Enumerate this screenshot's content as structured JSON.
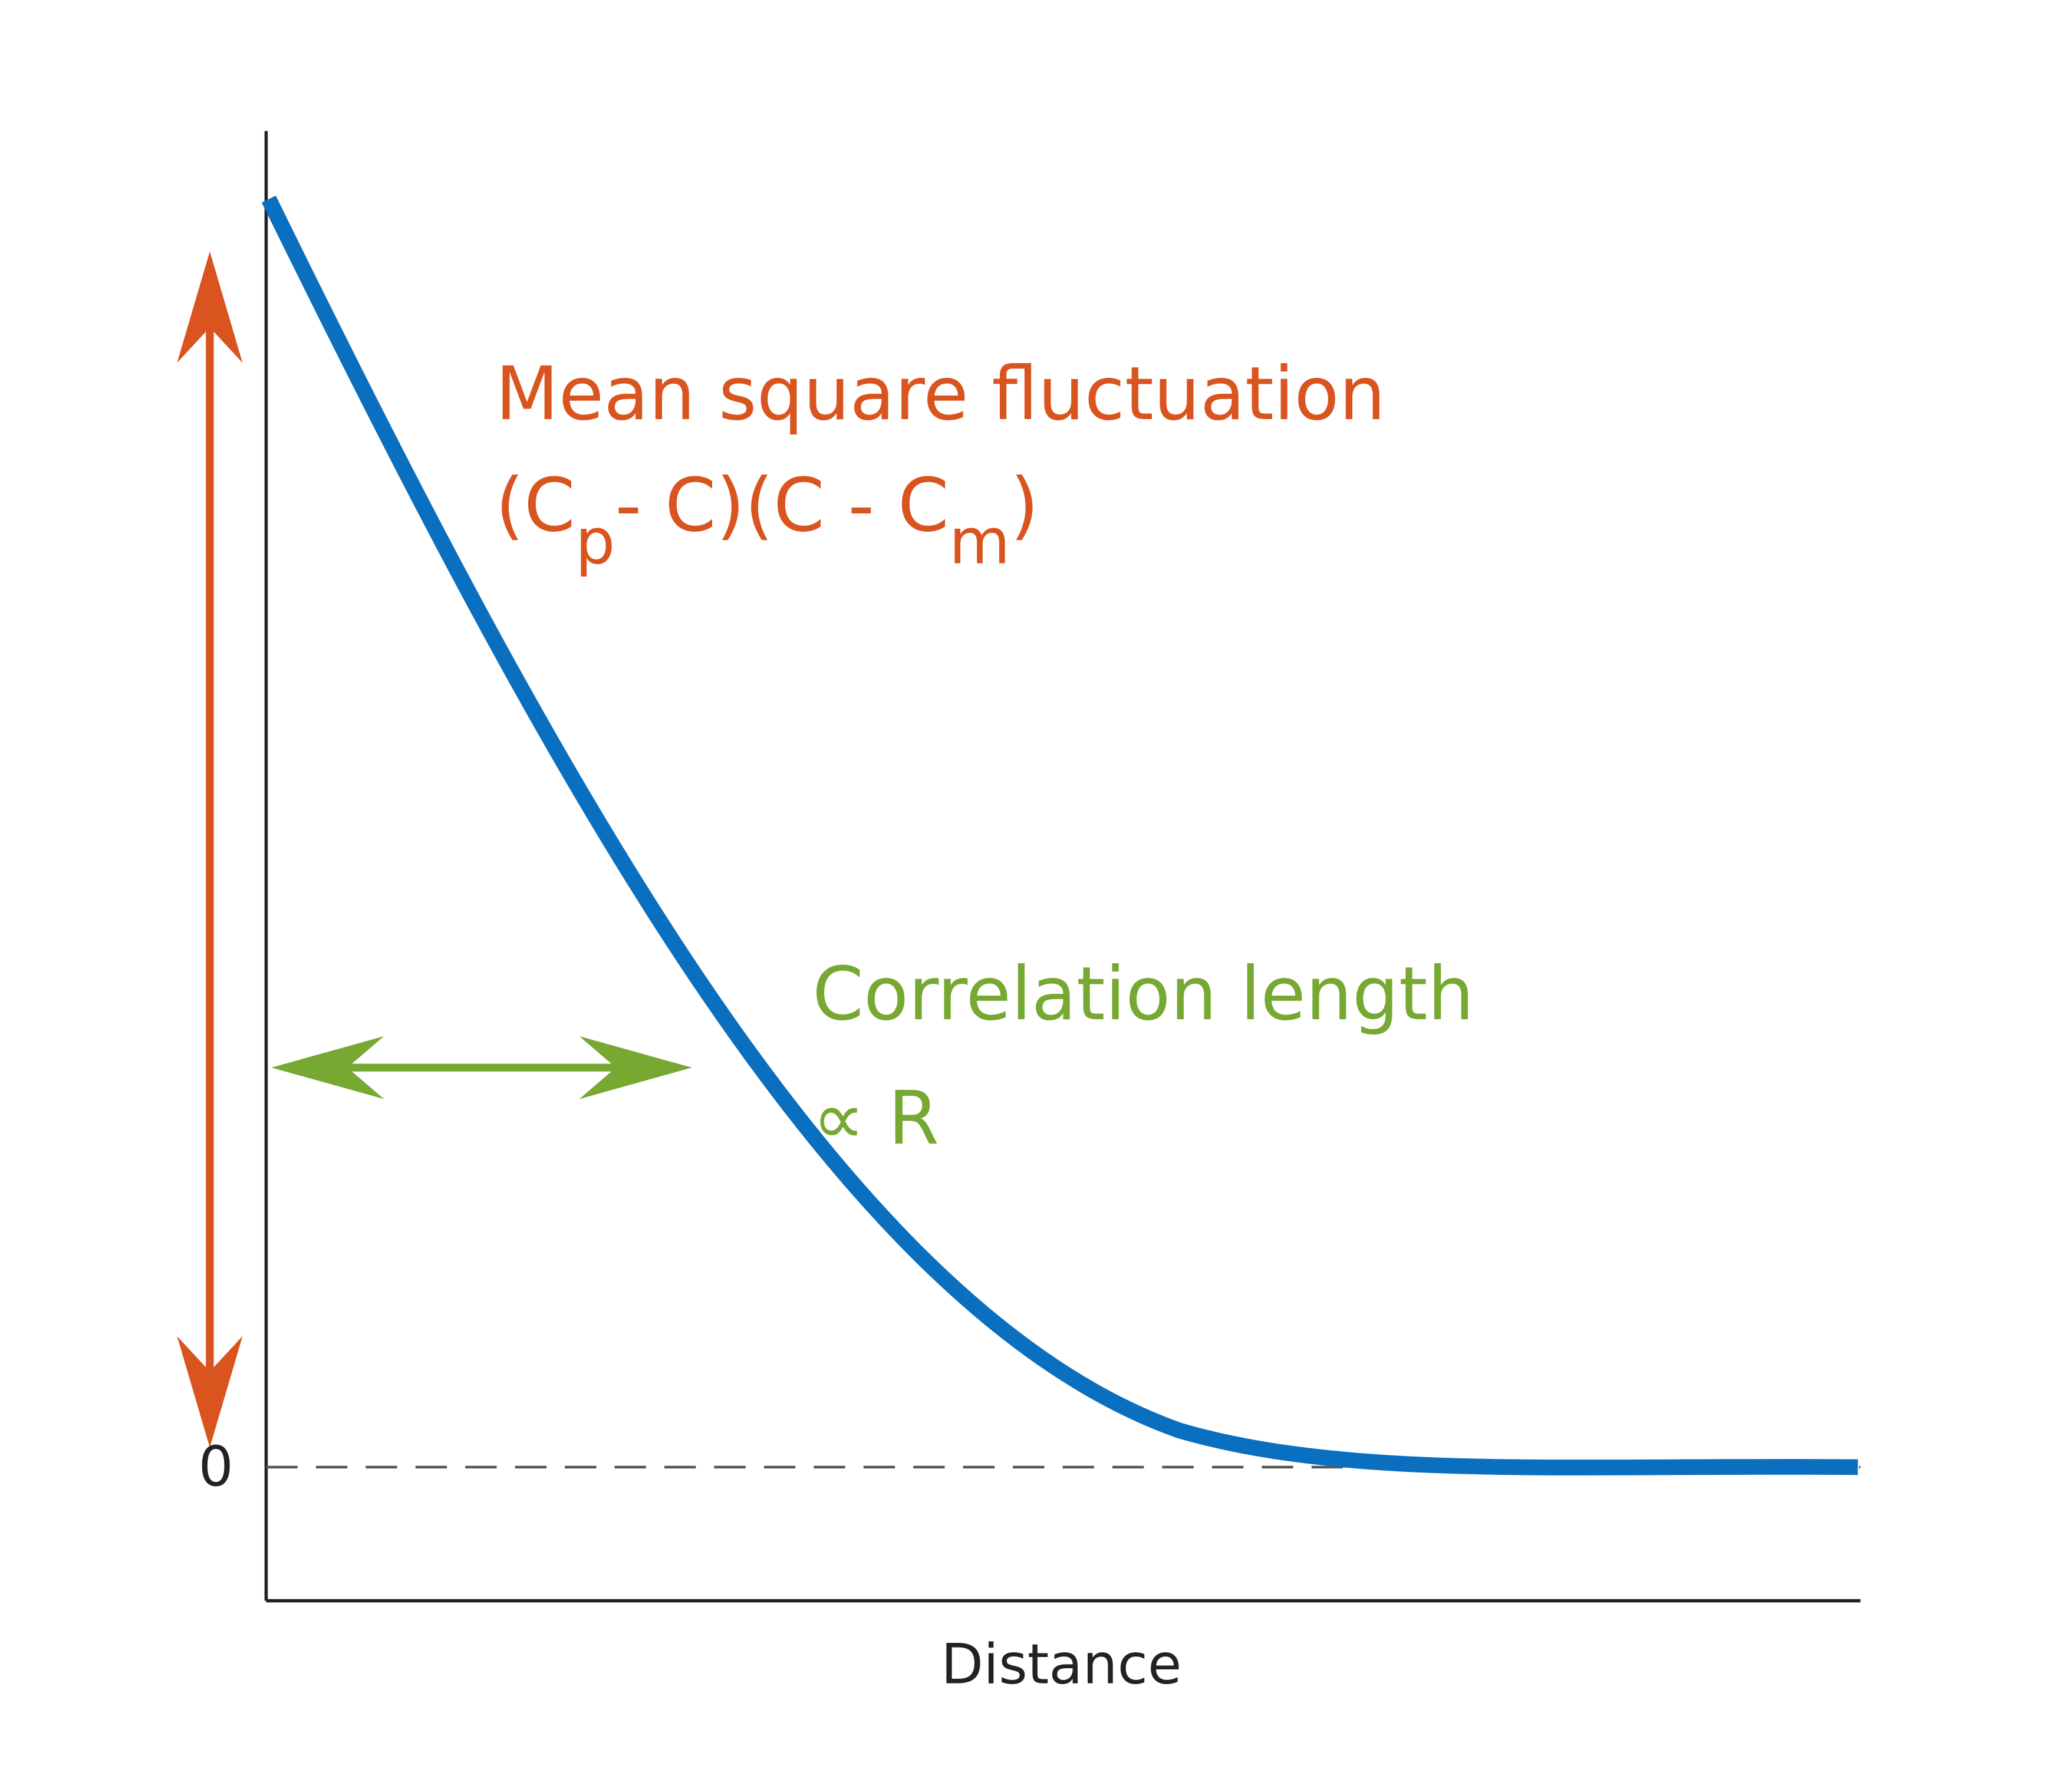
{
  "annotation": {
    "line1": "Mean square fluctuation",
    "formula": [
      "(C",
      "p",
      "- C)(C - C",
      "m",
      ")"
    ]
  },
  "correlation": {
    "line1": "Correlation length",
    "line2": "∝ R"
  },
  "y_axis": {
    "zero_label": "0"
  },
  "x_axis": {
    "label": "Distance"
  }
}
